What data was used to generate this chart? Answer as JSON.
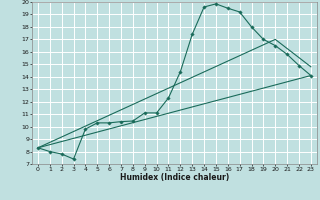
{
  "title": "",
  "xlabel": "Humidex (Indice chaleur)",
  "ylabel": "",
  "bg_color": "#c0e0e0",
  "grid_color": "#ffffff",
  "line_color": "#1a6b5a",
  "xlim": [
    -0.5,
    23.5
  ],
  "ylim": [
    7,
    20
  ],
  "xticks": [
    0,
    1,
    2,
    3,
    4,
    5,
    6,
    7,
    8,
    9,
    10,
    11,
    12,
    13,
    14,
    15,
    16,
    17,
    18,
    19,
    20,
    21,
    22,
    23
  ],
  "yticks": [
    7,
    8,
    9,
    10,
    11,
    12,
    13,
    14,
    15,
    16,
    17,
    18,
    19,
    20
  ],
  "curve_x": [
    0,
    1,
    2,
    3,
    4,
    5,
    6,
    7,
    8,
    9,
    10,
    11,
    12,
    13,
    14,
    15,
    16,
    17,
    18,
    19,
    20,
    21,
    22,
    23
  ],
  "curve_y": [
    8.3,
    8.0,
    7.8,
    7.4,
    9.8,
    10.3,
    10.3,
    10.4,
    10.45,
    11.1,
    11.1,
    12.3,
    14.4,
    17.4,
    19.6,
    19.85,
    19.5,
    19.2,
    18.0,
    17.0,
    16.5,
    15.8,
    14.9,
    14.1
  ],
  "line2_x": [
    0,
    20,
    23
  ],
  "line2_y": [
    8.3,
    17.0,
    14.8
  ],
  "line3_x": [
    0,
    23
  ],
  "line3_y": [
    8.3,
    14.1
  ],
  "figw": 3.2,
  "figh": 2.0,
  "dpi": 100
}
